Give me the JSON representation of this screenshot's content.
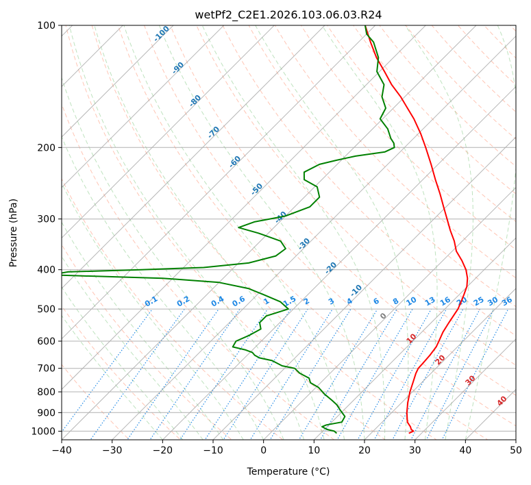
{
  "chart_data": {
    "type": "line",
    "title": "wetPf2_C2E1.2026.103.06.03.R24",
    "xlabel": "Temperature (°C)",
    "ylabel": "Pressure (hPa)",
    "xlim": [
      -40,
      50
    ],
    "ylim": [
      1050,
      100
    ],
    "y_scale": "log",
    "grid": true,
    "x_ticks": [
      -40,
      -30,
      -20,
      -10,
      0,
      10,
      20,
      30,
      40,
      50
    ],
    "y_ticks": [
      100,
      200,
      300,
      400,
      500,
      600,
      700,
      800,
      900,
      1000
    ],
    "x_tick_labels": [
      "−40",
      "−30",
      "−20",
      "−10",
      "0",
      "10",
      "20",
      "30",
      "40",
      "50"
    ],
    "y_tick_labels": [
      "100",
      "200",
      "300",
      "400",
      "500",
      "600",
      "700",
      "800",
      "900",
      "1000"
    ],
    "skew_angle_deg": 45,
    "colors": {
      "temperature": "#ff0000",
      "dewpoint": "#008000",
      "isotherm": "#999999",
      "dry_adiabat": "#ff8c69",
      "moist_adiabat": "#6fbf6f",
      "mixing_ratio": "#1e88e5",
      "frost_point_label": "#1f77b4",
      "wet_bulb_label": "#d62728",
      "zero_label": "#808080"
    },
    "series": [
      {
        "key": "temperature",
        "points": [
          [
            1012,
            27.5
          ],
          [
            1000,
            28.0
          ],
          [
            990,
            27.2
          ],
          [
            975,
            26.5
          ],
          [
            950,
            25.0
          ],
          [
            900,
            23.0
          ],
          [
            850,
            21.2
          ],
          [
            800,
            19.5
          ],
          [
            760,
            18.3
          ],
          [
            720,
            17.0
          ],
          [
            700,
            16.5
          ],
          [
            680,
            16.4
          ],
          [
            650,
            16.2
          ],
          [
            620,
            15.8
          ],
          [
            600,
            15.2
          ],
          [
            570,
            14.2
          ],
          [
            540,
            13.5
          ],
          [
            500,
            12.6
          ],
          [
            480,
            11.8
          ],
          [
            460,
            10.9
          ],
          [
            440,
            9.9
          ],
          [
            420,
            8.4
          ],
          [
            400,
            6.4
          ],
          [
            380,
            3.8
          ],
          [
            360,
            0.8
          ],
          [
            340,
            -1.6
          ],
          [
            320,
            -4.5
          ],
          [
            300,
            -7.4
          ],
          [
            280,
            -10.5
          ],
          [
            260,
            -13.8
          ],
          [
            240,
            -17.5
          ],
          [
            220,
            -21.4
          ],
          [
            200,
            -25.8
          ],
          [
            185,
            -29.5
          ],
          [
            170,
            -33.8
          ],
          [
            160,
            -37.2
          ],
          [
            150,
            -40.8
          ],
          [
            140,
            -45.0
          ],
          [
            130,
            -49.0
          ],
          [
            120,
            -53.4
          ],
          [
            110,
            -57.6
          ],
          [
            100,
            -62.0
          ]
        ]
      },
      {
        "key": "dewpoint",
        "points": [
          [
            1012,
            13.2
          ],
          [
            1000,
            12.3
          ],
          [
            990,
            10.5
          ],
          [
            975,
            9.0
          ],
          [
            965,
            9.5
          ],
          [
            950,
            12.0
          ],
          [
            920,
            11.5
          ],
          [
            890,
            9.5
          ],
          [
            860,
            7.5
          ],
          [
            840,
            5.8
          ],
          [
            810,
            3.0
          ],
          [
            780,
            0.5
          ],
          [
            760,
            -2.0
          ],
          [
            740,
            -3.2
          ],
          [
            720,
            -6.0
          ],
          [
            700,
            -8.0
          ],
          [
            690,
            -11.0
          ],
          [
            670,
            -14.0
          ],
          [
            660,
            -17.0
          ],
          [
            650,
            -18.5
          ],
          [
            640,
            -19.5
          ],
          [
            630,
            -21.5
          ],
          [
            620,
            -24.5
          ],
          [
            600,
            -25.0
          ],
          [
            580,
            -23.5
          ],
          [
            560,
            -22.5
          ],
          [
            540,
            -24.0
          ],
          [
            520,
            -24.0
          ],
          [
            500,
            -21.0
          ],
          [
            480,
            -24.0
          ],
          [
            460,
            -29.0
          ],
          [
            445,
            -33.0
          ],
          [
            430,
            -40.0
          ],
          [
            420,
            -52.0
          ],
          [
            412,
            -75.0
          ],
          [
            405,
            -72.0
          ],
          [
            400,
            -58.0
          ],
          [
            395,
            -46.0
          ],
          [
            385,
            -38.0
          ],
          [
            370,
            -34.0
          ],
          [
            355,
            -33.5
          ],
          [
            340,
            -36.0
          ],
          [
            325,
            -42.0
          ],
          [
            315,
            -47.0
          ],
          [
            305,
            -45.0
          ],
          [
            295,
            -40.0
          ],
          [
            280,
            -37.0
          ],
          [
            265,
            -37.0
          ],
          [
            250,
            -39.5
          ],
          [
            240,
            -43.5
          ],
          [
            230,
            -45.0
          ],
          [
            220,
            -43.5
          ],
          [
            215,
            -41.0
          ],
          [
            210,
            -38.0
          ],
          [
            205,
            -33.0
          ],
          [
            200,
            -32.0
          ],
          [
            195,
            -33.0
          ],
          [
            190,
            -34.5
          ],
          [
            180,
            -37.0
          ],
          [
            170,
            -40.5
          ],
          [
            160,
            -41.5
          ],
          [
            150,
            -44.5
          ],
          [
            140,
            -46.5
          ],
          [
            130,
            -50.5
          ],
          [
            120,
            -53.0
          ],
          [
            110,
            -57.0
          ],
          [
            105,
            -60.0
          ],
          [
            100,
            -62.0
          ]
        ]
      }
    ],
    "frost_point_labels": [
      "-100",
      "-90",
      "-80",
      "-70",
      "-60",
      "-50",
      "-40",
      "-30",
      "-20",
      "-10"
    ],
    "wet_bulb_labels": [
      "0",
      "10",
      "20",
      "30",
      "40"
    ],
    "mixing_ratio_labels": [
      "0.1",
      "0.2",
      "0.4",
      "0.6",
      "1",
      "1.5",
      "2",
      "3",
      "4",
      "6",
      "8",
      "10",
      "13",
      "16",
      "20",
      "25",
      "30",
      "36"
    ]
  }
}
